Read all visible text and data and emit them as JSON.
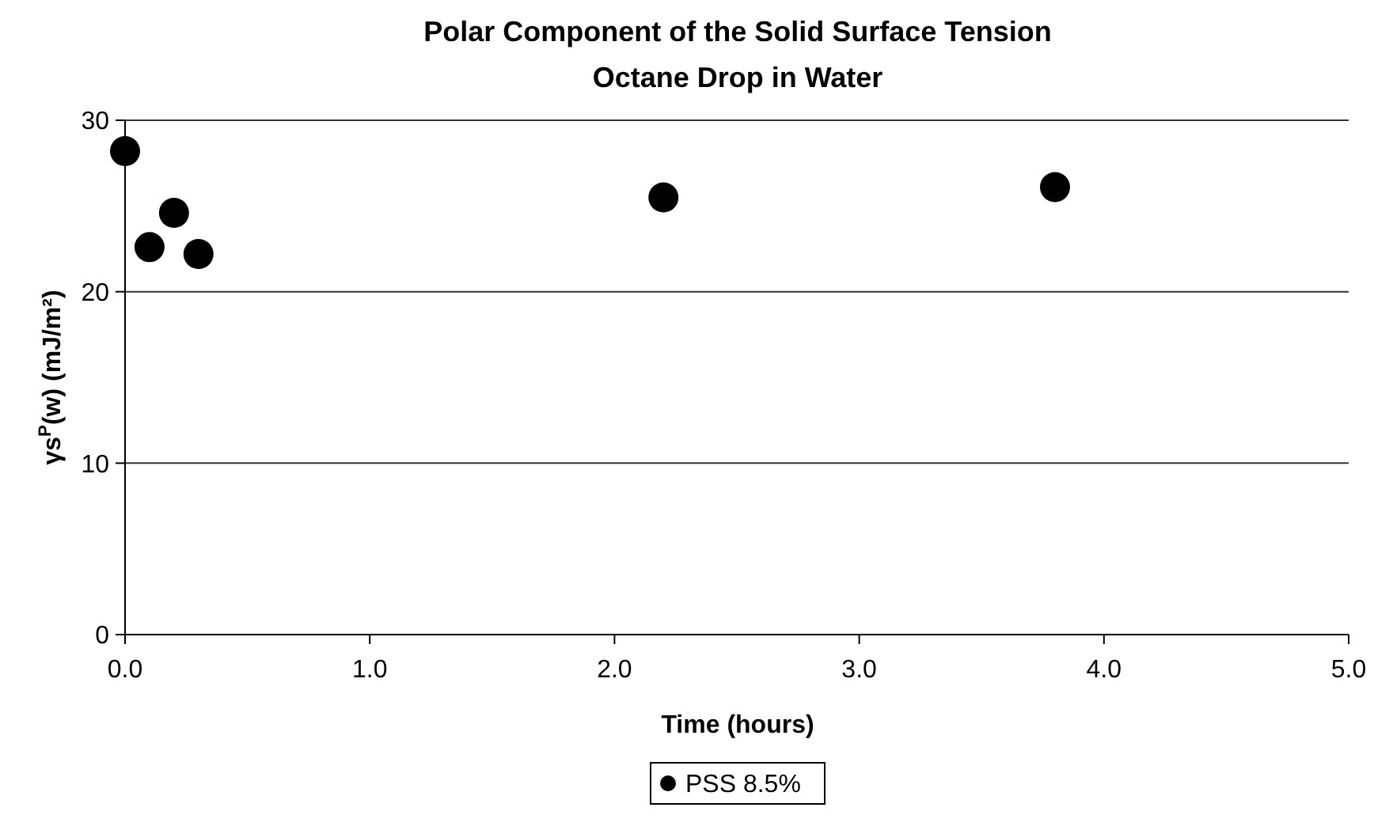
{
  "chart_data": {
    "type": "scatter",
    "title": "Polar Component of the Solid Surface Tension",
    "subtitle": "Octane Drop in Water",
    "xlabel": "Time (hours)",
    "ylabel": "γs$^{P}$(w) (mJ/m²)",
    "x": [
      0.0,
      0.1,
      0.2,
      0.3,
      2.2,
      3.8
    ],
    "series": [
      {
        "name": "PSS 8.5%",
        "color": "#000000",
        "values": [
          28.2,
          22.6,
          24.6,
          22.2,
          25.5,
          26.1
        ]
      }
    ],
    "xlim": [
      0,
      5
    ],
    "xticks": [
      {
        "value": 0,
        "label": "0.0"
      },
      {
        "value": 1,
        "label": "1.0"
      },
      {
        "value": 2,
        "label": "2.0"
      },
      {
        "value": 3,
        "label": "3.0"
      },
      {
        "value": 4,
        "label": "4.0"
      },
      {
        "value": 5,
        "label": "5.0"
      }
    ],
    "ylim": [
      0,
      30
    ],
    "yticks": [
      0,
      10,
      20,
      30
    ],
    "grid": "y",
    "legend": "bottom",
    "marker": "circle"
  }
}
